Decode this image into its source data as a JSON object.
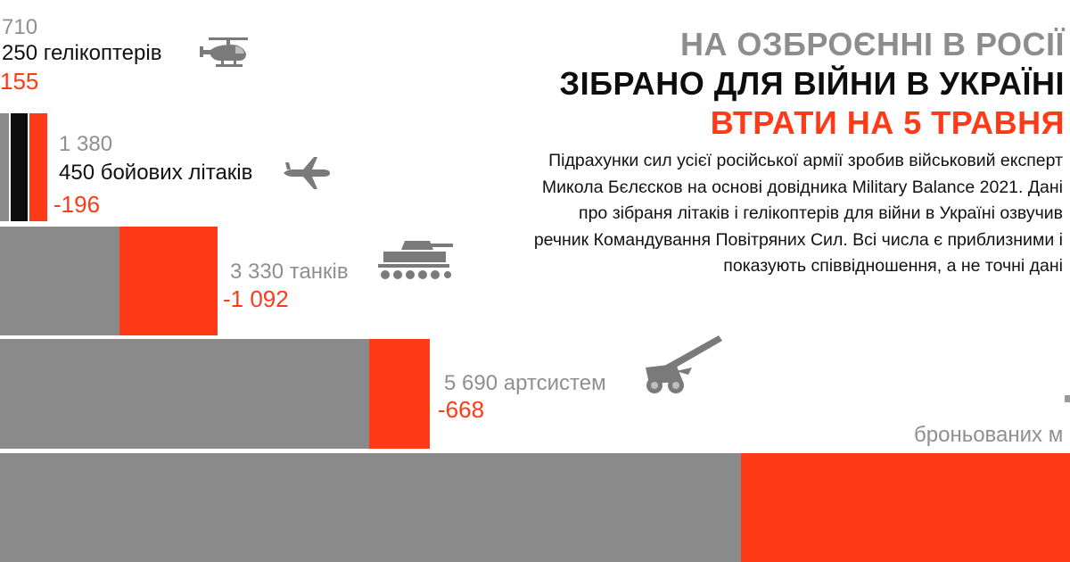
{
  "header": {
    "title_stock": "НА ОЗБРОЄННІ В РОСІЇ",
    "title_deployed": "ЗІБРАНО ДЛЯ ВІЙНИ В УКРАЇНІ",
    "title_losses": "ВТРАТИ НА 5 ТРАВНЯ",
    "description": "Підрахунки сил усієї російської армії зробив військовий експерт Микола Бєлєсков на основі довідника Military Balance 2021. Дані про зібраня літаків і гелікоптерів для війни в Україні озвучив речник Командування Повітряних Сил. Всі числа є приблизними і показують співвідношення, а не точні дані"
  },
  "labels": {
    "heli_total": "710",
    "heli_deployed": "250 гелікоптерів",
    "heli_loss": "155",
    "planes_total": "1 380",
    "planes_deployed": "450 бойових літаків",
    "planes_loss": "-196",
    "tanks_total": "3 330 танків",
    "tanks_loss": "-1 092",
    "artillery_total": "5 690 артсистем",
    "artillery_loss": "-668",
    "armored_partial": "броньованих м"
  },
  "colors": {
    "stock": "#8a8a8a",
    "deployed": "#0d0d0d",
    "losses": "#ff3a17"
  },
  "icons": [
    "helicopter-icon",
    "plane-icon",
    "tank-icon",
    "artillery-icon"
  ],
  "chart_data": {
    "type": "bar",
    "categories": [
      "гелікоптери",
      "бойові літаки",
      "танки",
      "артсистеми",
      "броньовані машини"
    ],
    "series": [
      {
        "name": "НА ОЗБРОЄННІ В РОСІЇ",
        "values": [
          710,
          1380,
          3330,
          5690,
          null
        ]
      },
      {
        "name": "ЗІБРАНО ДЛЯ ВІЙНИ В УКРАЇНІ",
        "values": [
          250,
          450,
          null,
          null,
          null
        ]
      },
      {
        "name": "ВТРАТИ НА 5 ТРАВНЯ",
        "values": [
          155,
          196,
          1092,
          668,
          null
        ]
      }
    ]
  }
}
